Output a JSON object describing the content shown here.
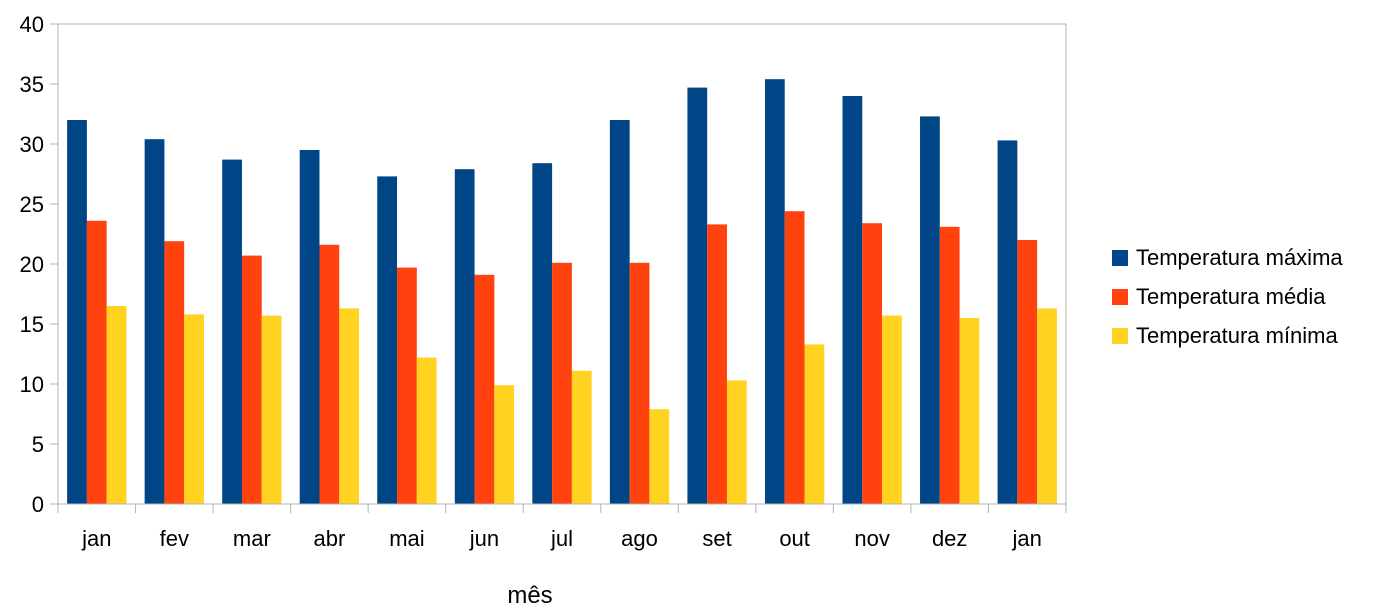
{
  "chart_data": {
    "type": "bar",
    "title": "",
    "xlabel": "mês",
    "ylabel": "",
    "ylim": [
      0,
      40
    ],
    "yticks": [
      0,
      5,
      10,
      15,
      20,
      25,
      30,
      35,
      40
    ],
    "grid": false,
    "legend_position": "right",
    "categories": [
      "jan",
      "fev",
      "mar",
      "abr",
      "mai",
      "jun",
      "jul",
      "ago",
      "set",
      "out",
      "nov",
      "dez",
      "jan"
    ],
    "series": [
      {
        "name": "Temperatura máxima",
        "color": "#004586",
        "values": [
          32.0,
          30.4,
          28.7,
          29.5,
          27.3,
          27.9,
          28.4,
          32.0,
          34.7,
          35.4,
          34.0,
          32.3,
          30.3
        ]
      },
      {
        "name": "Temperatura média",
        "color": "#FF420E",
        "values": [
          23.6,
          21.9,
          20.7,
          21.6,
          19.7,
          19.1,
          20.1,
          20.1,
          23.3,
          24.4,
          23.4,
          23.1,
          22.0
        ]
      },
      {
        "name": "Temperatura mínima",
        "color": "#FFD320",
        "values": [
          16.5,
          15.8,
          15.7,
          16.3,
          12.2,
          9.9,
          11.1,
          7.9,
          10.3,
          13.3,
          15.7,
          15.5,
          16.3
        ]
      }
    ]
  }
}
